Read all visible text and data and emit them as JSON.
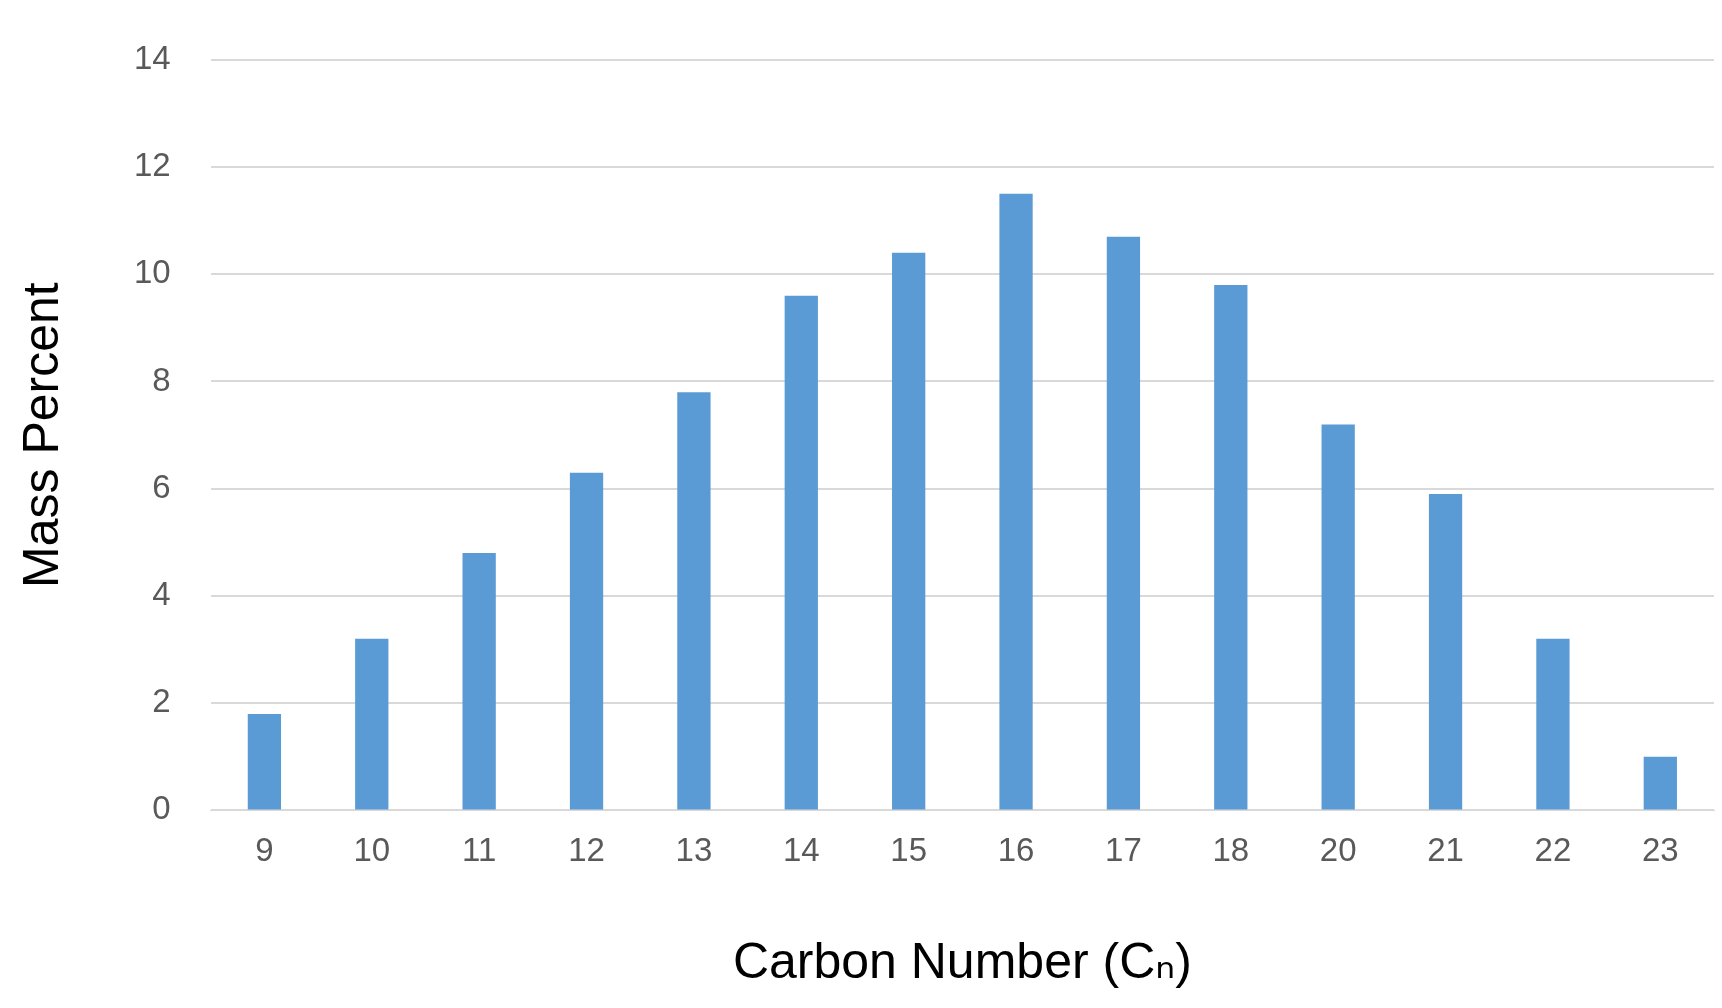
{
  "chart_data": {
    "type": "bar",
    "xlabel": "Carbon Number (Cₙ)",
    "ylabel": "Mass Percent",
    "categories": [
      "9",
      "10",
      "11",
      "12",
      "13",
      "14",
      "15",
      "16",
      "17",
      "18",
      "20",
      "21",
      "22",
      "23"
    ],
    "values": [
      1.8,
      3.2,
      4.8,
      6.3,
      7.8,
      9.6,
      10.4,
      11.5,
      10.7,
      9.8,
      7.2,
      5.9,
      3.2,
      1.0
    ],
    "color": "#5b9bd5",
    "ylim": [
      0,
      14
    ],
    "yticks": [
      0,
      2,
      4,
      6,
      8,
      10,
      12,
      14
    ],
    "grid": "y",
    "legend": false
  }
}
